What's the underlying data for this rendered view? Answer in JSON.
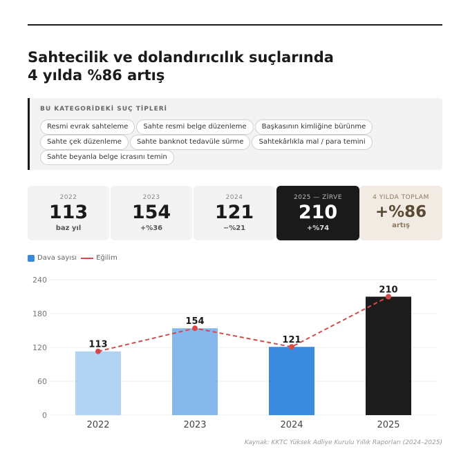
{
  "title": {
    "line1": "Sahtecilik ve dolandırıcılık suçlarında",
    "line2": "4 yılda %86 artış"
  },
  "categories_box": {
    "heading": "BU KATEGORİDEKİ SUÇ TİPLERİ",
    "items": [
      "Resmi evrak sahteleme",
      "Sahte resmi belge düzenleme",
      "Başkasının kimliğine bürünme",
      "Sahte çek düzenleme",
      "Sahte banknot tedavüle sürme",
      "Sahtekârlıkla mal / para temini",
      "Sahte beyanla belge icrasını temin"
    ]
  },
  "stats": [
    {
      "label": "2022",
      "value": "113",
      "sub": "baz yıl"
    },
    {
      "label": "2023",
      "value": "154",
      "sub": "+%36"
    },
    {
      "label": "2024",
      "value": "121",
      "sub": "−%21"
    },
    {
      "label": "2025 — ZİRVE",
      "value": "210",
      "sub": "+%74"
    },
    {
      "label": "4 YILDA TOPLAM",
      "value": "+%86",
      "sub": "artış"
    }
  ],
  "legend": {
    "bars": "Dava sayısı",
    "line": "Eğilim"
  },
  "colors": {
    "bar_2022": "#b3d3f3",
    "bar_2023": "#86b8ec",
    "bar_2024": "#3a8ae0",
    "bar_2025": "#1c1c1c",
    "trend": "#d44a4a"
  },
  "chart_data": {
    "type": "bar",
    "categories": [
      "2022",
      "2023",
      "2024",
      "2025"
    ],
    "series": [
      {
        "name": "Dava sayısı",
        "values": [
          113,
          154,
          121,
          210
        ]
      },
      {
        "name": "Eğilim",
        "values": [
          113,
          154,
          121,
          210
        ]
      }
    ],
    "ylim": [
      0,
      240
    ],
    "yticks": [
      0,
      60,
      120,
      180,
      240
    ],
    "grid": true,
    "legend_position": "top-left"
  },
  "source": "Kaynak: KKTC Yüksek Adliye Kurulu Yıllık Raporları (2024–2025)"
}
